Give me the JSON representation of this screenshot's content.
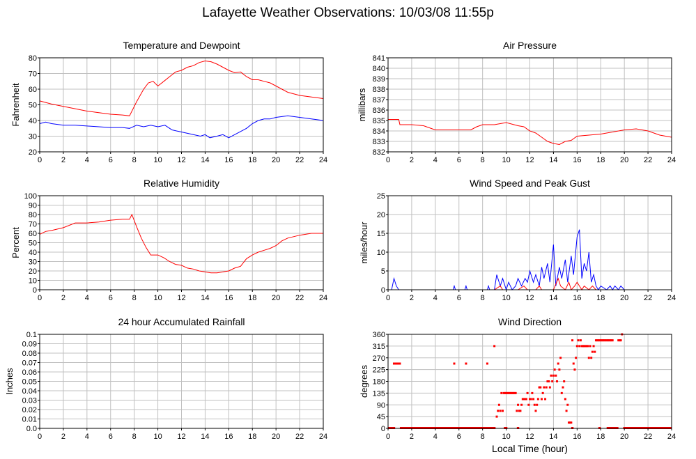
{
  "page": {
    "title": "Lafayette Weather Observations: 10/03/08 11:55p"
  },
  "colors": {
    "red": "#ff0000",
    "blue": "#0000ff",
    "grid": "#c0c0c0",
    "axis": "#000000"
  },
  "chart_data": [
    {
      "id": "temp",
      "type": "line",
      "title": "Temperature and Dewpoint",
      "xlabel": "",
      "ylabel": "Fahrenheit",
      "xlim": [
        0,
        24
      ],
      "ylim": [
        20,
        80
      ],
      "xticks": [
        0,
        2,
        4,
        6,
        8,
        10,
        12,
        14,
        16,
        18,
        20,
        22,
        24
      ],
      "yticks": [
        20,
        30,
        40,
        50,
        60,
        70,
        80
      ],
      "grid": true,
      "series": [
        {
          "color": "red",
          "x": [
            0,
            1,
            2,
            3,
            4,
            5,
            6,
            7,
            7.6,
            8.2,
            8.8,
            9.2,
            9.6,
            10,
            10.5,
            11,
            11.5,
            12,
            12.5,
            13,
            13.5,
            14,
            14.5,
            15,
            15.5,
            16,
            16.5,
            17,
            17.5,
            18,
            18.5,
            19,
            19.5,
            20,
            20.5,
            21,
            22,
            23,
            24
          ],
          "y": [
            52.5,
            50.5,
            49,
            47.5,
            46,
            45,
            44,
            43.5,
            43,
            52,
            60,
            64,
            65,
            62,
            65,
            68,
            71,
            72,
            74,
            75,
            77,
            78,
            77.5,
            76,
            74,
            72,
            70.5,
            71,
            68,
            66,
            66,
            65,
            64,
            62,
            60,
            58,
            56,
            55,
            54
          ]
        },
        {
          "color": "blue",
          "x": [
            0,
            0.5,
            1,
            2,
            3,
            4,
            5,
            6,
            7,
            7.6,
            8.2,
            8.8,
            9.4,
            10,
            10.6,
            11.2,
            11.8,
            12.4,
            13,
            13.6,
            14,
            14.4,
            15,
            15.5,
            16,
            16.5,
            17,
            17.5,
            18,
            18.5,
            19,
            19.5,
            20,
            21,
            22,
            23,
            24
          ],
          "y": [
            38,
            39,
            38,
            37,
            37,
            36.5,
            36,
            35.5,
            35.5,
            35,
            37,
            36,
            37,
            36,
            37,
            34,
            33,
            32,
            31,
            30,
            31,
            29,
            30,
            31,
            29,
            31,
            33,
            35,
            38,
            40,
            41,
            41,
            42,
            43,
            42,
            41,
            40
          ]
        }
      ]
    },
    {
      "id": "pressure",
      "type": "line",
      "title": "Air Pressure",
      "xlabel": "",
      "ylabel": "millibars",
      "xlim": [
        0,
        24
      ],
      "ylim": [
        832,
        841
      ],
      "xticks": [
        0,
        2,
        4,
        6,
        8,
        10,
        12,
        14,
        16,
        18,
        20,
        22,
        24
      ],
      "yticks": [
        832,
        833,
        834,
        835,
        836,
        837,
        838,
        839,
        840,
        841
      ],
      "grid": true,
      "series": [
        {
          "color": "red",
          "x": [
            0,
            0.9,
            1,
            2,
            3,
            4,
            5,
            6,
            7,
            7.5,
            8,
            9,
            10,
            11,
            11.5,
            12,
            12.5,
            13,
            13.5,
            14,
            14.5,
            15,
            15.5,
            16,
            17,
            18,
            19,
            20,
            21,
            22,
            23,
            24
          ],
          "y": [
            835.1,
            835.1,
            834.6,
            834.6,
            834.5,
            834.1,
            834.1,
            834.1,
            834.1,
            834.4,
            834.6,
            834.6,
            834.8,
            834.5,
            834.4,
            834.0,
            833.8,
            833.4,
            833.0,
            832.8,
            832.7,
            833.0,
            833.1,
            833.5,
            833.6,
            833.7,
            833.9,
            834.1,
            834.2,
            834.0,
            833.6,
            833.4
          ]
        }
      ]
    },
    {
      "id": "humidity",
      "type": "line",
      "title": "Relative Humidity",
      "xlabel": "",
      "ylabel": "Percent",
      "xlim": [
        0,
        24
      ],
      "ylim": [
        0,
        100
      ],
      "xticks": [
        0,
        2,
        4,
        6,
        8,
        10,
        12,
        14,
        16,
        18,
        20,
        22,
        24
      ],
      "yticks": [
        0,
        10,
        20,
        30,
        40,
        50,
        60,
        70,
        80,
        90,
        100
      ],
      "grid": true,
      "series": [
        {
          "color": "red",
          "x": [
            0,
            0.5,
            1,
            2,
            3,
            4,
            5,
            6,
            7,
            7.6,
            7.8,
            8.2,
            8.6,
            9,
            9.4,
            10,
            10.5,
            11,
            11.5,
            12,
            12.5,
            13,
            13.5,
            14,
            14.5,
            15,
            15.5,
            16,
            16.5,
            17,
            17.5,
            18,
            18.5,
            19,
            19.5,
            20,
            20.5,
            21,
            22,
            23,
            24
          ],
          "y": [
            59,
            62,
            63,
            66,
            71,
            71,
            72,
            74,
            75,
            75,
            80,
            67,
            55,
            45,
            37,
            37,
            34,
            30,
            27,
            26,
            23,
            22,
            20,
            19,
            18,
            18,
            19,
            20,
            23,
            25,
            33,
            37,
            40,
            42,
            44,
            47,
            52,
            55,
            58,
            60,
            60
          ]
        }
      ]
    },
    {
      "id": "wind",
      "type": "line",
      "title": "Wind Speed and Peak Gust",
      "xlabel": "",
      "ylabel": "miles/hour",
      "xlim": [
        0,
        24
      ],
      "ylim": [
        0,
        25
      ],
      "xticks": [
        0,
        2,
        4,
        6,
        8,
        10,
        12,
        14,
        16,
        18,
        20,
        22,
        24
      ],
      "yticks": [
        0,
        5,
        10,
        15,
        20,
        25
      ],
      "grid": true,
      "series": [
        {
          "color": "blue",
          "x": [
            0,
            0.3,
            0.5,
            0.7,
            0.9,
            1.0,
            5.5,
            5.6,
            5.7,
            6.5,
            6.6,
            6.7,
            8.4,
            8.5,
            8.6,
            9.0,
            9.2,
            9.5,
            9.7,
            10.0,
            10.2,
            10.5,
            10.8,
            11.0,
            11.3,
            11.6,
            11.8,
            12.0,
            12.3,
            12.5,
            12.8,
            13.0,
            13.2,
            13.5,
            13.7,
            14.0,
            14.2,
            14.5,
            14.7,
            15.0,
            15.2,
            15.5,
            15.7,
            16.0,
            16.2,
            16.4,
            16.6,
            16.8,
            17.0,
            17.2,
            17.4,
            17.6,
            17.8,
            18.0,
            18.5,
            18.8,
            19.0,
            19.2,
            19.5,
            19.7,
            20.0,
            24
          ],
          "y": [
            0,
            0,
            3,
            1,
            0,
            0,
            0,
            1,
            0,
            0,
            1,
            0,
            0,
            1,
            0,
            0,
            4,
            1,
            3,
            0,
            2,
            0,
            1,
            3,
            1,
            3,
            2,
            5,
            2,
            4,
            1,
            6,
            3,
            7,
            2,
            12,
            1,
            6,
            3,
            8,
            2,
            9,
            4,
            14,
            16,
            3,
            7,
            5,
            10,
            2,
            4,
            1,
            0,
            1,
            0,
            1,
            0,
            1,
            0,
            1,
            0,
            0
          ]
        },
        {
          "color": "red",
          "x": [
            0,
            9.0,
            9.5,
            9.7,
            10.0,
            11.0,
            11.5,
            11.8,
            12.5,
            12.8,
            13.0,
            14.0,
            14.4,
            14.6,
            15.0,
            15.3,
            15.5,
            15.8,
            16.0,
            16.2,
            16.4,
            16.6,
            17.0,
            17.3,
            17.6,
            18.0,
            24
          ],
          "y": [
            0,
            0,
            1,
            0,
            0,
            0,
            1,
            0,
            0,
            1,
            0,
            0,
            3,
            1,
            0,
            2,
            0,
            1,
            2,
            1,
            0,
            1,
            0,
            1,
            0,
            0,
            0
          ]
        }
      ]
    },
    {
      "id": "rain",
      "type": "line",
      "title": "24 hour Accumulated Rainfall",
      "xlabel": "",
      "ylabel": "Inches",
      "xlim": [
        0,
        24
      ],
      "ylim": [
        0,
        0.1
      ],
      "xticks": [
        0,
        2,
        4,
        6,
        8,
        10,
        12,
        14,
        16,
        18,
        20,
        22,
        24
      ],
      "yticks": [
        0.0,
        0.01,
        0.02,
        0.03,
        0.04,
        0.05,
        0.06,
        0.07,
        0.08,
        0.09,
        0.1
      ],
      "ytick_labels": [
        "0.0",
        "0.01",
        "0.02",
        "0.03",
        "0.04",
        "0.05",
        "0.06",
        "0.07",
        "0.08",
        "0.09",
        "0.1"
      ],
      "grid": true,
      "series": [
        {
          "color": "red",
          "x": [
            0,
            24
          ],
          "y": [
            0,
            0
          ]
        }
      ]
    },
    {
      "id": "direction",
      "type": "scatter",
      "title": "Wind Direction",
      "xlabel": "Local Time (hour)",
      "ylabel": "degrees",
      "xlim": [
        0,
        24
      ],
      "ylim": [
        0,
        360
      ],
      "xticks": [
        0,
        2,
        4,
        6,
        8,
        10,
        12,
        14,
        16,
        18,
        20,
        22,
        24
      ],
      "yticks": [
        0,
        45,
        90,
        135,
        180,
        225,
        270,
        315,
        360
      ],
      "grid": true,
      "series": [
        {
          "color": "red",
          "zero_runs": [
            [
              0,
              0.6
            ],
            [
              1.0,
              9.1
            ],
            [
              9.8,
              10.1
            ],
            [
              10.9,
              11.1
            ],
            [
              15.5,
              15.7
            ],
            [
              17.8,
              18.0
            ],
            [
              18.5,
              19.5
            ],
            [
              19.9,
              24
            ]
          ],
          "x": [
            0.5,
            0.6,
            0.7,
            0.8,
            0.9,
            1.0,
            5.6,
            6.6,
            8.4,
            9.0,
            9.2,
            9.3,
            9.4,
            9.5,
            9.6,
            9.7,
            9.8,
            9.9,
            10.0,
            10.1,
            10.2,
            10.3,
            10.4,
            10.5,
            10.6,
            10.7,
            10.8,
            10.9,
            11.0,
            11.1,
            11.2,
            11.3,
            11.4,
            11.5,
            11.6,
            11.7,
            11.8,
            11.9,
            12.0,
            12.1,
            12.2,
            12.3,
            12.4,
            12.5,
            12.6,
            12.7,
            12.8,
            12.9,
            13.0,
            13.1,
            13.2,
            13.3,
            13.4,
            13.5,
            13.6,
            13.7,
            13.8,
            13.9,
            14.0,
            14.1,
            14.2,
            14.3,
            14.4,
            14.5,
            14.6,
            14.7,
            14.8,
            14.9,
            15.0,
            15.1,
            15.2,
            15.3,
            15.4,
            15.5,
            15.6,
            15.7,
            15.8,
            15.9,
            16.0,
            16.1,
            16.2,
            16.3,
            16.4,
            16.5,
            16.6,
            16.7,
            16.8,
            16.9,
            17.0,
            17.1,
            17.2,
            17.3,
            17.4,
            17.5,
            17.6,
            17.7,
            17.8,
            17.9,
            18.0,
            18.1,
            18.2,
            18.3,
            18.4,
            18.5,
            18.6,
            18.7,
            18.8,
            18.9,
            19.0,
            19.5,
            19.6,
            19.7,
            19.8
          ],
          "y": [
            248,
            248,
            248,
            248,
            248,
            248,
            248,
            248,
            248,
            315,
            45,
            67,
            90,
            67,
            135,
            67,
            135,
            135,
            135,
            135,
            135,
            135,
            135,
            135,
            135,
            135,
            135,
            67,
            90,
            67,
            67,
            90,
            112,
            112,
            112,
            112,
            135,
            90,
            112,
            112,
            135,
            112,
            90,
            67,
            90,
            112,
            157,
            157,
            112,
            135,
            157,
            112,
            157,
            180,
            180,
            157,
            202,
            180,
            202,
            225,
            202,
            180,
            248,
            225,
            270,
            135,
            157,
            180,
            112,
            67,
            90,
            22,
            22,
            22,
            337,
            248,
            225,
            270,
            315,
            337,
            315,
            337,
            315,
            315,
            315,
            315,
            315,
            315,
            270,
            315,
            270,
            293,
            315,
            293,
            337,
            337,
            337,
            337,
            337,
            337,
            337,
            337,
            337,
            337,
            337,
            337,
            337,
            337,
            337,
            337,
            337,
            337,
            360
          ]
        }
      ]
    }
  ]
}
